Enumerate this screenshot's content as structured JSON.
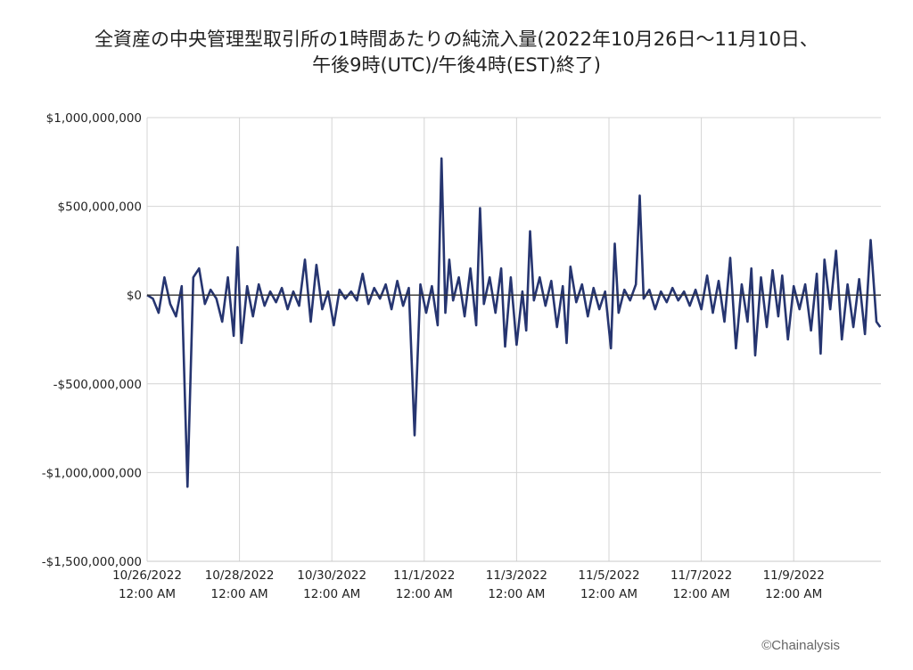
{
  "title_lines": [
    "全資産の中央管理型取引所の1時間あたりの純流入量(2022年10月26日〜11月10日、",
    "午後9時(UTC)/午後4時(EST)終了)"
  ],
  "copyright": "©Chainalysis",
  "chart_data": {
    "type": "line",
    "title": "全資産の中央管理型取引所の1時間あたりの純流入量(2022年10月26日〜11月10日、午後9時(UTC)/午後4時(EST)終了)",
    "xlabel": "",
    "ylabel": "",
    "x_start": "2022-10-26T00:00",
    "x_end": "2022-11-10T21:00",
    "x_interval": "1 hour",
    "ylim": [
      -1500000000,
      1000000000
    ],
    "yticks": [
      1000000000,
      500000000,
      0,
      -500000000,
      -1000000000,
      -1500000000
    ],
    "ytick_labels": [
      "$1,000,000,000",
      "$500,000,000",
      "$0",
      "-$500,000,000",
      "-$1,000,000,000",
      "-$1,500,000,000"
    ],
    "xtick_labels": [
      [
        "10/26/2022",
        "12:00 AM"
      ],
      [
        "10/28/2022",
        "12:00 AM"
      ],
      [
        "10/30/2022",
        "12:00 AM"
      ],
      [
        "11/1/2022",
        "12:00 AM"
      ],
      [
        "11/3/2022",
        "12:00 AM"
      ],
      [
        "11/5/2022",
        "12:00 AM"
      ],
      [
        "11/7/2022",
        "12:00 AM"
      ],
      [
        "11/9/2022",
        "12:00 AM"
      ]
    ],
    "grid": true,
    "color": "#263570",
    "series": [
      {
        "name": "",
        "points": [
          [
            "2022-10-26T00:00",
            0
          ],
          [
            "2022-10-26T03:00",
            -20000000
          ],
          [
            "2022-10-26T06:00",
            -100000000
          ],
          [
            "2022-10-26T09:00",
            100000000
          ],
          [
            "2022-10-26T12:00",
            -50000000
          ],
          [
            "2022-10-26T15:00",
            -120000000
          ],
          [
            "2022-10-26T18:00",
            50000000
          ],
          [
            "2022-10-26T21:00",
            -1080000000
          ],
          [
            "2022-10-27T00:00",
            100000000
          ],
          [
            "2022-10-27T03:00",
            150000000
          ],
          [
            "2022-10-27T06:00",
            -50000000
          ],
          [
            "2022-10-27T09:00",
            30000000
          ],
          [
            "2022-10-27T12:00",
            -20000000
          ],
          [
            "2022-10-27T15:00",
            -150000000
          ],
          [
            "2022-10-27T18:00",
            100000000
          ],
          [
            "2022-10-27T21:00",
            -230000000
          ],
          [
            "2022-10-27T23:00",
            270000000
          ],
          [
            "2022-10-28T01:00",
            -270000000
          ],
          [
            "2022-10-28T04:00",
            50000000
          ],
          [
            "2022-10-28T07:00",
            -120000000
          ],
          [
            "2022-10-28T10:00",
            60000000
          ],
          [
            "2022-10-28T13:00",
            -60000000
          ],
          [
            "2022-10-28T16:00",
            20000000
          ],
          [
            "2022-10-28T19:00",
            -40000000
          ],
          [
            "2022-10-28T22:00",
            40000000
          ],
          [
            "2022-10-29T01:00",
            -80000000
          ],
          [
            "2022-10-29T04:00",
            20000000
          ],
          [
            "2022-10-29T07:00",
            -60000000
          ],
          [
            "2022-10-29T10:00",
            200000000
          ],
          [
            "2022-10-29T13:00",
            -150000000
          ],
          [
            "2022-10-29T16:00",
            170000000
          ],
          [
            "2022-10-29T19:00",
            -80000000
          ],
          [
            "2022-10-29T22:00",
            20000000
          ],
          [
            "2022-10-30T01:00",
            -170000000
          ],
          [
            "2022-10-30T04:00",
            30000000
          ],
          [
            "2022-10-30T07:00",
            -20000000
          ],
          [
            "2022-10-30T10:00",
            20000000
          ],
          [
            "2022-10-30T13:00",
            -30000000
          ],
          [
            "2022-10-30T16:00",
            120000000
          ],
          [
            "2022-10-30T19:00",
            -50000000
          ],
          [
            "2022-10-30T22:00",
            40000000
          ],
          [
            "2022-10-31T01:00",
            -20000000
          ],
          [
            "2022-10-31T04:00",
            60000000
          ],
          [
            "2022-10-31T07:00",
            -80000000
          ],
          [
            "2022-10-31T10:00",
            80000000
          ],
          [
            "2022-10-31T13:00",
            -60000000
          ],
          [
            "2022-10-31T16:00",
            40000000
          ],
          [
            "2022-10-31T19:00",
            -790000000
          ],
          [
            "2022-10-31T22:00",
            60000000
          ],
          [
            "2022-11-01T01:00",
            -100000000
          ],
          [
            "2022-11-01T04:00",
            50000000
          ],
          [
            "2022-11-01T07:00",
            -170000000
          ],
          [
            "2022-11-01T09:00",
            770000000
          ],
          [
            "2022-11-01T11:00",
            -100000000
          ],
          [
            "2022-11-01T13:00",
            200000000
          ],
          [
            "2022-11-01T15:00",
            -30000000
          ],
          [
            "2022-11-01T18:00",
            100000000
          ],
          [
            "2022-11-01T21:00",
            -120000000
          ],
          [
            "2022-11-02T00:00",
            150000000
          ],
          [
            "2022-11-02T03:00",
            -170000000
          ],
          [
            "2022-11-02T05:00",
            490000000
          ],
          [
            "2022-11-02T07:00",
            -50000000
          ],
          [
            "2022-11-02T10:00",
            100000000
          ],
          [
            "2022-11-02T13:00",
            -100000000
          ],
          [
            "2022-11-02T16:00",
            150000000
          ],
          [
            "2022-11-02T18:00",
            -290000000
          ],
          [
            "2022-11-02T21:00",
            100000000
          ],
          [
            "2022-11-03T00:00",
            -280000000
          ],
          [
            "2022-11-03T03:00",
            20000000
          ],
          [
            "2022-11-03T05:00",
            -200000000
          ],
          [
            "2022-11-03T07:00",
            360000000
          ],
          [
            "2022-11-03T09:00",
            -30000000
          ],
          [
            "2022-11-03T12:00",
            100000000
          ],
          [
            "2022-11-03T15:00",
            -60000000
          ],
          [
            "2022-11-03T18:00",
            80000000
          ],
          [
            "2022-11-03T21:00",
            -180000000
          ],
          [
            "2022-11-04T00:00",
            50000000
          ],
          [
            "2022-11-04T02:00",
            -270000000
          ],
          [
            "2022-11-04T04:00",
            160000000
          ],
          [
            "2022-11-04T07:00",
            -40000000
          ],
          [
            "2022-11-04T10:00",
            60000000
          ],
          [
            "2022-11-04T13:00",
            -120000000
          ],
          [
            "2022-11-04T16:00",
            40000000
          ],
          [
            "2022-11-04T19:00",
            -80000000
          ],
          [
            "2022-11-04T22:00",
            20000000
          ],
          [
            "2022-11-05T01:00",
            -300000000
          ],
          [
            "2022-11-05T03:00",
            290000000
          ],
          [
            "2022-11-05T05:00",
            -100000000
          ],
          [
            "2022-11-05T08:00",
            30000000
          ],
          [
            "2022-11-05T11:00",
            -30000000
          ],
          [
            "2022-11-05T14:00",
            60000000
          ],
          [
            "2022-11-05T16:00",
            560000000
          ],
          [
            "2022-11-05T18:00",
            -20000000
          ],
          [
            "2022-11-05T21:00",
            30000000
          ],
          [
            "2022-11-06T00:00",
            -80000000
          ],
          [
            "2022-11-06T03:00",
            20000000
          ],
          [
            "2022-11-06T06:00",
            -40000000
          ],
          [
            "2022-11-06T09:00",
            40000000
          ],
          [
            "2022-11-06T12:00",
            -30000000
          ],
          [
            "2022-11-06T15:00",
            20000000
          ],
          [
            "2022-11-06T18:00",
            -60000000
          ],
          [
            "2022-11-06T21:00",
            30000000
          ],
          [
            "2022-11-07T00:00",
            -80000000
          ],
          [
            "2022-11-07T03:00",
            110000000
          ],
          [
            "2022-11-07T06:00",
            -100000000
          ],
          [
            "2022-11-07T09:00",
            80000000
          ],
          [
            "2022-11-07T12:00",
            -150000000
          ],
          [
            "2022-11-07T15:00",
            210000000
          ],
          [
            "2022-11-07T18:00",
            -300000000
          ],
          [
            "2022-11-07T21:00",
            60000000
          ],
          [
            "2022-11-08T00:00",
            -150000000
          ],
          [
            "2022-11-08T02:00",
            150000000
          ],
          [
            "2022-11-08T04:00",
            -340000000
          ],
          [
            "2022-11-08T07:00",
            100000000
          ],
          [
            "2022-11-08T10:00",
            -180000000
          ],
          [
            "2022-11-08T13:00",
            140000000
          ],
          [
            "2022-11-08T16:00",
            -120000000
          ],
          [
            "2022-11-08T18:00",
            110000000
          ],
          [
            "2022-11-08T21:00",
            -250000000
          ],
          [
            "2022-11-09T00:00",
            50000000
          ],
          [
            "2022-11-09T03:00",
            -80000000
          ],
          [
            "2022-11-09T06:00",
            60000000
          ],
          [
            "2022-11-09T09:00",
            -200000000
          ],
          [
            "2022-11-09T12:00",
            120000000
          ],
          [
            "2022-11-09T14:00",
            -330000000
          ],
          [
            "2022-11-09T16:00",
            200000000
          ],
          [
            "2022-11-09T19:00",
            -80000000
          ],
          [
            "2022-11-09T22:00",
            250000000
          ],
          [
            "2022-11-10T01:00",
            -250000000
          ],
          [
            "2022-11-10T04:00",
            60000000
          ],
          [
            "2022-11-10T07:00",
            -180000000
          ],
          [
            "2022-11-10T10:00",
            90000000
          ],
          [
            "2022-11-10T13:00",
            -220000000
          ],
          [
            "2022-11-10T16:00",
            310000000
          ],
          [
            "2022-11-10T19:00",
            -150000000
          ],
          [
            "2022-11-10T21:00",
            -180000000
          ]
        ]
      }
    ]
  }
}
